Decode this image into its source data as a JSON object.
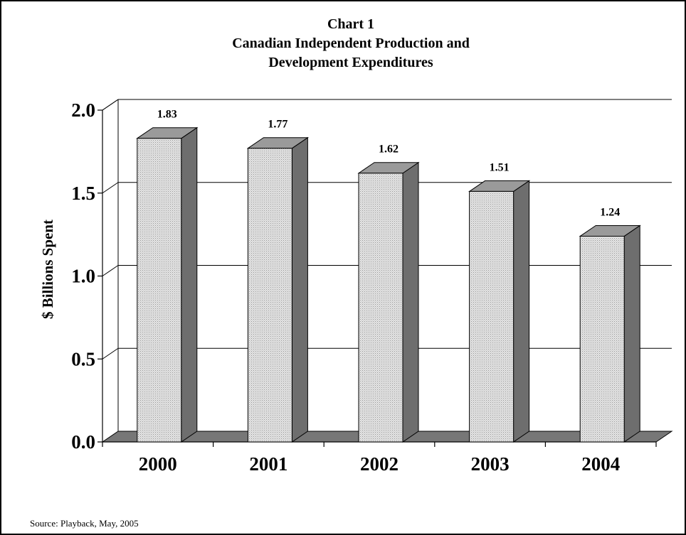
{
  "chart_data": {
    "type": "bar",
    "title_lines": [
      "Chart 1",
      "Canadian Independent Production and",
      "Development Expenditures"
    ],
    "categories": [
      "2000",
      "2001",
      "2002",
      "2003",
      "2004"
    ],
    "values": [
      1.83,
      1.77,
      1.62,
      1.51,
      1.24
    ],
    "value_labels": [
      "1.83",
      "1.77",
      "1.62",
      "1.51",
      "1.24"
    ],
    "ylabel": "$ Billions Spent",
    "xlabel": "",
    "ylim": [
      0,
      2.0
    ],
    "yticks": [
      0.0,
      0.5,
      1.0,
      1.5,
      2.0
    ],
    "ytick_labels": [
      "0.0",
      "0.5",
      "1.0",
      "1.5",
      "2.0"
    ],
    "grid": true,
    "style": "3d",
    "colors": {
      "bar_front": "#d8d8d8",
      "bar_top": "#9a9a9a",
      "bar_side": "#6e6e6e",
      "floor": "#777777"
    }
  },
  "source": "Source:  Playback, May, 2005"
}
